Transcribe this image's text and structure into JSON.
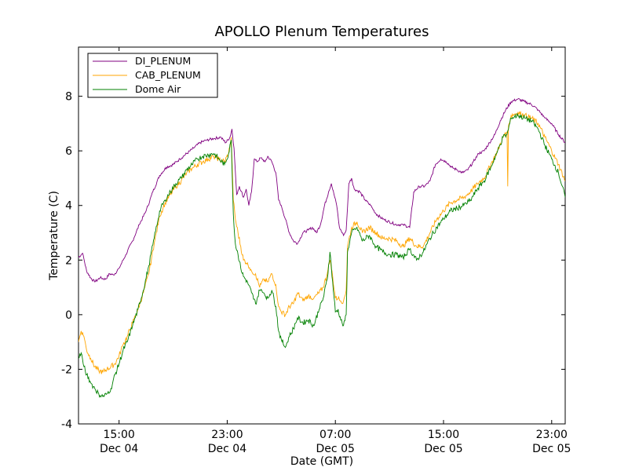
{
  "chart_data": {
    "type": "line",
    "title": "APOLLO Plenum Temperatures",
    "xlabel": "Date (GMT)",
    "ylabel": "Temperature (C)",
    "x_unit": "hours since Dec 04 12:00 GMT",
    "xlim": [
      0,
      36
    ],
    "ylim": [
      -4,
      9.8
    ],
    "yticks": [
      -4,
      -2,
      0,
      2,
      4,
      6,
      8
    ],
    "xticks": [
      {
        "x": 3,
        "time": "15:00",
        "date": "Dec 04"
      },
      {
        "x": 11,
        "time": "23:00",
        "date": "Dec 04"
      },
      {
        "x": 19,
        "time": "07:00",
        "date": "Dec 05"
      },
      {
        "x": 27,
        "time": "15:00",
        "date": "Dec 05"
      },
      {
        "x": 35,
        "time": "23:00",
        "date": "Dec 05"
      }
    ],
    "legend_position": "top-left",
    "series": [
      {
        "name": "DI_PLENUM",
        "color": "#800080",
        "points": [
          [
            0,
            2.1
          ],
          [
            0.3,
            2.25
          ],
          [
            0.6,
            1.6
          ],
          [
            0.9,
            1.35
          ],
          [
            1.2,
            1.2
          ],
          [
            1.6,
            1.35
          ],
          [
            2.0,
            1.3
          ],
          [
            2.3,
            1.5
          ],
          [
            2.6,
            1.45
          ],
          [
            3.0,
            1.7
          ],
          [
            3.5,
            2.2
          ],
          [
            4.0,
            2.7
          ],
          [
            4.5,
            3.3
          ],
          [
            5.0,
            3.8
          ],
          [
            5.5,
            4.5
          ],
          [
            6.0,
            5.1
          ],
          [
            6.5,
            5.4
          ],
          [
            7.0,
            5.5
          ],
          [
            7.5,
            5.7
          ],
          [
            8.0,
            5.9
          ],
          [
            8.5,
            6.1
          ],
          [
            9.0,
            6.3
          ],
          [
            9.5,
            6.4
          ],
          [
            10.0,
            6.45
          ],
          [
            10.5,
            6.5
          ],
          [
            10.9,
            6.3
          ],
          [
            11.2,
            6.5
          ],
          [
            11.35,
            6.8
          ],
          [
            11.5,
            6.1
          ],
          [
            11.7,
            4.4
          ],
          [
            11.9,
            4.7
          ],
          [
            12.2,
            4.3
          ],
          [
            12.4,
            4.6
          ],
          [
            12.6,
            4.0
          ],
          [
            12.8,
            4.5
          ],
          [
            13.0,
            5.7
          ],
          [
            13.2,
            5.6
          ],
          [
            13.5,
            5.75
          ],
          [
            13.8,
            5.6
          ],
          [
            14.0,
            5.8
          ],
          [
            14.3,
            5.6
          ],
          [
            14.6,
            5.2
          ],
          [
            14.8,
            4.2
          ],
          [
            15.0,
            4.0
          ],
          [
            15.3,
            3.5
          ],
          [
            15.6,
            3.0
          ],
          [
            15.9,
            2.7
          ],
          [
            16.2,
            2.6
          ],
          [
            16.6,
            3.0
          ],
          [
            17.0,
            3.1
          ],
          [
            17.3,
            3.2
          ],
          [
            17.6,
            3.0
          ],
          [
            17.9,
            3.3
          ],
          [
            18.2,
            4.0
          ],
          [
            18.5,
            4.5
          ],
          [
            18.7,
            4.8
          ],
          [
            18.9,
            4.4
          ],
          [
            19.1,
            4.0
          ],
          [
            19.3,
            3.2
          ],
          [
            19.6,
            2.9
          ],
          [
            19.8,
            3.1
          ],
          [
            20.0,
            4.8
          ],
          [
            20.2,
            5.0
          ],
          [
            20.4,
            4.6
          ],
          [
            20.8,
            4.5
          ],
          [
            21.2,
            4.2
          ],
          [
            21.6,
            4.0
          ],
          [
            22.0,
            3.7
          ],
          [
            22.5,
            3.5
          ],
          [
            23.0,
            3.4
          ],
          [
            23.5,
            3.3
          ],
          [
            24.0,
            3.3
          ],
          [
            24.5,
            3.2
          ],
          [
            24.8,
            4.5
          ],
          [
            25.2,
            4.7
          ],
          [
            25.6,
            4.7
          ],
          [
            26.0,
            4.9
          ],
          [
            26.4,
            5.5
          ],
          [
            26.8,
            5.7
          ],
          [
            27.2,
            5.6
          ],
          [
            27.6,
            5.4
          ],
          [
            28.0,
            5.3
          ],
          [
            28.4,
            5.2
          ],
          [
            28.8,
            5.3
          ],
          [
            29.2,
            5.6
          ],
          [
            29.6,
            5.9
          ],
          [
            30.0,
            6.0
          ],
          [
            30.4,
            6.3
          ],
          [
            30.8,
            6.6
          ],
          [
            31.2,
            7.1
          ],
          [
            31.6,
            7.5
          ],
          [
            32.0,
            7.8
          ],
          [
            32.5,
            7.9
          ],
          [
            33.0,
            7.8
          ],
          [
            33.5,
            7.7
          ],
          [
            34.0,
            7.5
          ],
          [
            34.5,
            7.2
          ],
          [
            35.0,
            7.0
          ],
          [
            35.5,
            6.6
          ],
          [
            36.0,
            6.3
          ]
        ]
      },
      {
        "name": "CAB_PLENUM",
        "color": "#ffa500",
        "points": [
          [
            0,
            -1.0
          ],
          [
            0.2,
            -0.6
          ],
          [
            0.4,
            -0.8
          ],
          [
            0.6,
            -1.3
          ],
          [
            0.9,
            -1.6
          ],
          [
            1.2,
            -1.9
          ],
          [
            1.5,
            -2.05
          ],
          [
            1.8,
            -2.1
          ],
          [
            2.1,
            -2.0
          ],
          [
            2.4,
            -1.9
          ],
          [
            2.7,
            -1.8
          ],
          [
            3.0,
            -1.5
          ],
          [
            3.3,
            -1.1
          ],
          [
            3.6,
            -0.8
          ],
          [
            4.0,
            -0.3
          ],
          [
            4.4,
            0.2
          ],
          [
            4.8,
            0.8
          ],
          [
            5.2,
            1.5
          ],
          [
            5.6,
            2.6
          ],
          [
            6.0,
            3.6
          ],
          [
            6.4,
            4.1
          ],
          [
            6.8,
            4.4
          ],
          [
            7.2,
            4.7
          ],
          [
            7.6,
            4.9
          ],
          [
            8.0,
            5.2
          ],
          [
            8.4,
            5.35
          ],
          [
            8.8,
            5.5
          ],
          [
            9.2,
            5.6
          ],
          [
            9.6,
            5.7
          ],
          [
            10.0,
            5.8
          ],
          [
            10.4,
            5.7
          ],
          [
            10.8,
            5.6
          ],
          [
            11.1,
            5.9
          ],
          [
            11.3,
            6.5
          ],
          [
            11.45,
            4.2
          ],
          [
            11.6,
            3.5
          ],
          [
            11.8,
            3.0
          ],
          [
            12.0,
            2.5
          ],
          [
            12.2,
            2.0
          ],
          [
            12.5,
            1.9
          ],
          [
            12.8,
            1.6
          ],
          [
            13.1,
            1.5
          ],
          [
            13.4,
            1.0
          ],
          [
            13.7,
            1.3
          ],
          [
            14.0,
            1.2
          ],
          [
            14.3,
            1.5
          ],
          [
            14.6,
            1.1
          ],
          [
            14.8,
            0.3
          ],
          [
            15.0,
            0.1
          ],
          [
            15.3,
            0.0
          ],
          [
            15.6,
            0.3
          ],
          [
            15.9,
            0.4
          ],
          [
            16.2,
            0.8
          ],
          [
            16.6,
            0.5
          ],
          [
            17.0,
            0.7
          ],
          [
            17.4,
            0.6
          ],
          [
            17.8,
            0.8
          ],
          [
            18.1,
            1.0
          ],
          [
            18.4,
            1.5
          ],
          [
            18.6,
            2.0
          ],
          [
            18.8,
            1.4
          ],
          [
            19.0,
            0.6
          ],
          [
            19.2,
            0.6
          ],
          [
            19.4,
            0.5
          ],
          [
            19.6,
            0.5
          ],
          [
            19.8,
            0.9
          ],
          [
            19.9,
            2.5
          ],
          [
            20.2,
            3.2
          ],
          [
            20.6,
            3.4
          ],
          [
            21.0,
            3.0
          ],
          [
            21.5,
            3.2
          ],
          [
            22.0,
            3.0
          ],
          [
            22.5,
            2.8
          ],
          [
            23.0,
            2.8
          ],
          [
            23.5,
            2.7
          ],
          [
            24.0,
            2.5
          ],
          [
            24.5,
            2.8
          ],
          [
            25.0,
            2.5
          ],
          [
            25.5,
            2.5
          ],
          [
            26.0,
            3.0
          ],
          [
            26.5,
            3.5
          ],
          [
            27.0,
            3.8
          ],
          [
            27.5,
            4.1
          ],
          [
            28.0,
            4.2
          ],
          [
            28.5,
            4.3
          ],
          [
            29.0,
            4.5
          ],
          [
            29.5,
            4.8
          ],
          [
            30.0,
            5.0
          ],
          [
            30.5,
            5.5
          ],
          [
            31.0,
            6.0
          ],
          [
            31.4,
            6.5
          ],
          [
            31.7,
            6.7
          ],
          [
            31.75,
            4.7
          ],
          [
            31.8,
            6.9
          ],
          [
            32.0,
            7.3
          ],
          [
            32.5,
            7.4
          ],
          [
            33.0,
            7.3
          ],
          [
            33.5,
            7.2
          ],
          [
            34.0,
            7.0
          ],
          [
            34.5,
            6.5
          ],
          [
            35.0,
            6.0
          ],
          [
            35.5,
            5.5
          ],
          [
            36.0,
            4.9
          ]
        ]
      },
      {
        "name": "Dome Air",
        "color": "#008000",
        "points": [
          [
            0,
            -1.6
          ],
          [
            0.2,
            -1.4
          ],
          [
            0.4,
            -1.9
          ],
          [
            0.6,
            -2.2
          ],
          [
            0.9,
            -2.5
          ],
          [
            1.2,
            -2.7
          ],
          [
            1.5,
            -2.9
          ],
          [
            1.8,
            -3.0
          ],
          [
            2.1,
            -2.9
          ],
          [
            2.4,
            -2.7
          ],
          [
            2.7,
            -2.2
          ],
          [
            3.0,
            -1.8
          ],
          [
            3.3,
            -1.3
          ],
          [
            3.6,
            -1.0
          ],
          [
            4.0,
            -0.4
          ],
          [
            4.4,
            0.2
          ],
          [
            4.8,
            0.9
          ],
          [
            5.2,
            1.8
          ],
          [
            5.6,
            2.8
          ],
          [
            6.0,
            3.8
          ],
          [
            6.4,
            4.2
          ],
          [
            6.8,
            4.5
          ],
          [
            7.2,
            4.8
          ],
          [
            7.6,
            5.0
          ],
          [
            8.0,
            5.3
          ],
          [
            8.4,
            5.5
          ],
          [
            8.8,
            5.7
          ],
          [
            9.2,
            5.8
          ],
          [
            9.6,
            5.85
          ],
          [
            10.0,
            5.9
          ],
          [
            10.4,
            5.7
          ],
          [
            10.8,
            5.5
          ],
          [
            11.1,
            5.9
          ],
          [
            11.3,
            6.4
          ],
          [
            11.45,
            3.7
          ],
          [
            11.6,
            2.6
          ],
          [
            11.8,
            2.2
          ],
          [
            12.0,
            1.7
          ],
          [
            12.2,
            1.4
          ],
          [
            12.5,
            1.2
          ],
          [
            12.8,
            0.8
          ],
          [
            13.1,
            0.4
          ],
          [
            13.4,
            0.9
          ],
          [
            13.7,
            0.8
          ],
          [
            14.0,
            0.6
          ],
          [
            14.3,
            0.9
          ],
          [
            14.6,
            0.3
          ],
          [
            14.8,
            -0.6
          ],
          [
            15.0,
            -0.9
          ],
          [
            15.3,
            -1.2
          ],
          [
            15.6,
            -0.8
          ],
          [
            15.9,
            -0.5
          ],
          [
            16.2,
            -0.1
          ],
          [
            16.6,
            -0.3
          ],
          [
            17.0,
            -0.2
          ],
          [
            17.4,
            -0.4
          ],
          [
            17.8,
            0.2
          ],
          [
            18.1,
            0.6
          ],
          [
            18.4,
            1.3
          ],
          [
            18.6,
            2.3
          ],
          [
            18.8,
            1.2
          ],
          [
            19.0,
            0.1
          ],
          [
            19.2,
            0.2
          ],
          [
            19.4,
            -0.2
          ],
          [
            19.6,
            -0.4
          ],
          [
            19.8,
            0.0
          ],
          [
            19.9,
            2.3
          ],
          [
            20.2,
            3.0
          ],
          [
            20.6,
            3.2
          ],
          [
            21.0,
            2.7
          ],
          [
            21.5,
            2.9
          ],
          [
            22.0,
            2.5
          ],
          [
            22.5,
            2.3
          ],
          [
            23.0,
            2.2
          ],
          [
            23.5,
            2.2
          ],
          [
            24.0,
            2.1
          ],
          [
            24.5,
            2.4
          ],
          [
            25.0,
            2.0
          ],
          [
            25.5,
            2.3
          ],
          [
            26.0,
            2.8
          ],
          [
            26.5,
            3.2
          ],
          [
            27.0,
            3.5
          ],
          [
            27.5,
            3.8
          ],
          [
            28.0,
            3.9
          ],
          [
            28.5,
            4.0
          ],
          [
            29.0,
            4.2
          ],
          [
            29.5,
            4.6
          ],
          [
            30.0,
            4.9
          ],
          [
            30.5,
            5.4
          ],
          [
            31.0,
            6.0
          ],
          [
            31.4,
            6.5
          ],
          [
            31.7,
            6.6
          ],
          [
            32.0,
            7.2
          ],
          [
            32.5,
            7.3
          ],
          [
            33.0,
            7.2
          ],
          [
            33.5,
            7.1
          ],
          [
            34.0,
            6.8
          ],
          [
            34.5,
            6.2
          ],
          [
            35.0,
            5.7
          ],
          [
            35.5,
            5.2
          ],
          [
            36.0,
            4.3
          ]
        ]
      }
    ]
  }
}
